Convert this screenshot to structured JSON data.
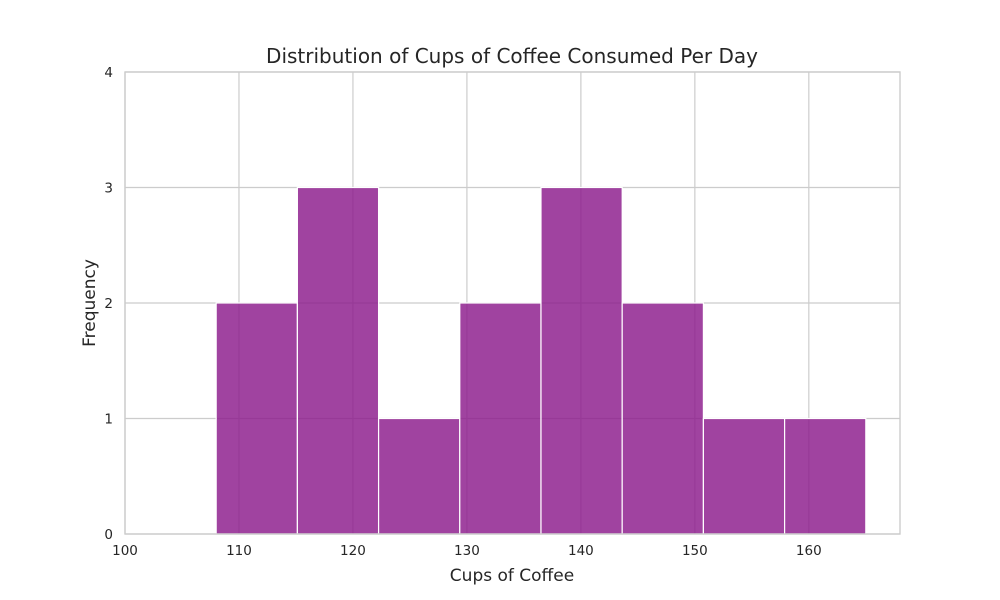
{
  "chart_data": {
    "type": "bar",
    "title": "Distribution of Cups of Coffee Consumed Per Day",
    "xlabel": "Cups of Coffee",
    "ylabel": "Frequency",
    "xlim": [
      100,
      168
    ],
    "ylim": [
      0,
      4
    ],
    "xticks": [
      100,
      110,
      120,
      130,
      140,
      150,
      160
    ],
    "yticks": [
      0,
      1,
      2,
      3,
      4
    ],
    "grid": true,
    "bar_color": "#8B1A8B",
    "bins": [
      {
        "start": 108,
        "end": 115.125,
        "count": 2
      },
      {
        "start": 115.125,
        "end": 122.25,
        "count": 3
      },
      {
        "start": 122.25,
        "end": 129.375,
        "count": 1
      },
      {
        "start": 129.375,
        "end": 136.5,
        "count": 2
      },
      {
        "start": 136.5,
        "end": 143.625,
        "count": 3
      },
      {
        "start": 143.625,
        "end": 150.75,
        "count": 2
      },
      {
        "start": 150.75,
        "end": 157.875,
        "count": 1
      },
      {
        "start": 157.875,
        "end": 165,
        "count": 1
      }
    ]
  }
}
